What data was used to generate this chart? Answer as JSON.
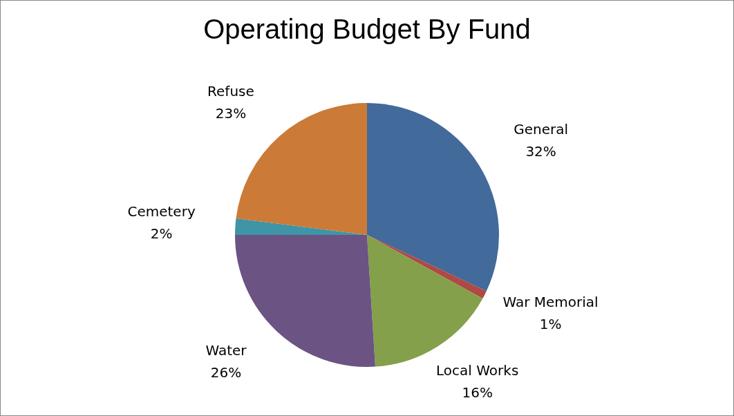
{
  "chart_data": {
    "type": "pie",
    "title": "Operating Budget By Fund",
    "categories": [
      "General",
      "War Memorial",
      "Local Works",
      "Water",
      "Cemetery",
      "Refuse"
    ],
    "values": [
      32,
      1,
      16,
      26,
      2,
      23
    ],
    "value_labels": [
      "32%",
      "1%",
      "16%",
      "26%",
      "2%",
      "23%"
    ],
    "colors": [
      "#426a9a",
      "#b04845",
      "#84a04a",
      "#6b5383",
      "#3f94a7",
      "#cb7a37"
    ],
    "legend": false
  }
}
